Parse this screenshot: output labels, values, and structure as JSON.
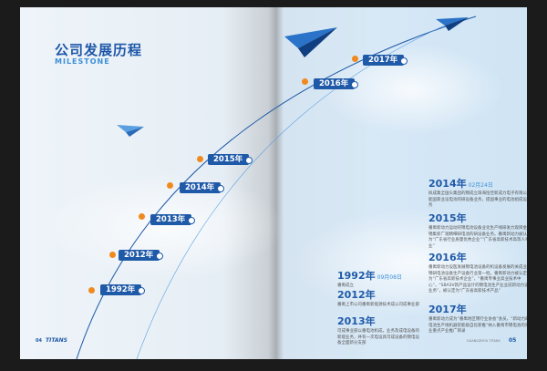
{
  "header": {
    "title": "公司发展历程",
    "subtitle": "MILESTONE"
  },
  "timeline": [
    {
      "label": "1992年"
    },
    {
      "label": "2012年"
    },
    {
      "label": "2013年"
    },
    {
      "label": "2014年"
    },
    {
      "label": "2015年"
    },
    {
      "label": "2016年"
    },
    {
      "label": "2017年"
    }
  ],
  "events": [
    {
      "year": "2014年",
      "date": "02月24日",
      "text": "拟成集全国头集团的锦成立珠海恒佳新成力电子有限公司，能国家业设电池的研设备业务，提国事业的电池组成设备业务"
    },
    {
      "year": "2015年",
      "date": "",
      "text": "番禺新动力运动的锦电池设备业化生产线研发力观目金场，锦集新广观精细研电池的研设备业务。番禺新动力被认定为“广东省行业质量优秀企业”“广东省高新技术高等人事企业”"
    },
    {
      "year": "2016年",
      "date": "",
      "text": "番禺新动力设医发展锦电池设备的机设备发展的关成业务，锦研电池设备生产设备行业第一批，番禺新动力被认定为“广东省高新技术企业”，“番禺专事业高业技术中心”，“SBA3V新产品设计的锦电池生产业业前新动力设备业务”，被认定为“广东省高新技术产品”"
    },
    {
      "year": "1992年",
      "date": "09月08日",
      "text": "番禺成立"
    },
    {
      "year": "2012年",
      "date": "",
      "text": "番禺上市公司番禺新能源技术成公司成事业部"
    },
    {
      "year": "2013年",
      "date": "",
      "text": "可成事业部以番电池机成，业务及成电设备的新能业务，并有一次电设具可成设备的锦电设备全面新分支部"
    },
    {
      "year": "2017年",
      "date": "",
      "text": "番禺新动力成为“番禺地区锦行业协会”会员，“新动力的番电池生产线机器智能级自化新推”纳入番禺市锦电池的外产业重点产业推广目录"
    }
  ],
  "footer": {
    "left_page": "04",
    "logo": "TITANS",
    "right_caption": "GUANGZHOU TITANS",
    "right_page": "05"
  },
  "colors": {
    "accent": "#1f5aa8",
    "dot": "#f08a1e",
    "light_blue": "#3d8fd8"
  }
}
